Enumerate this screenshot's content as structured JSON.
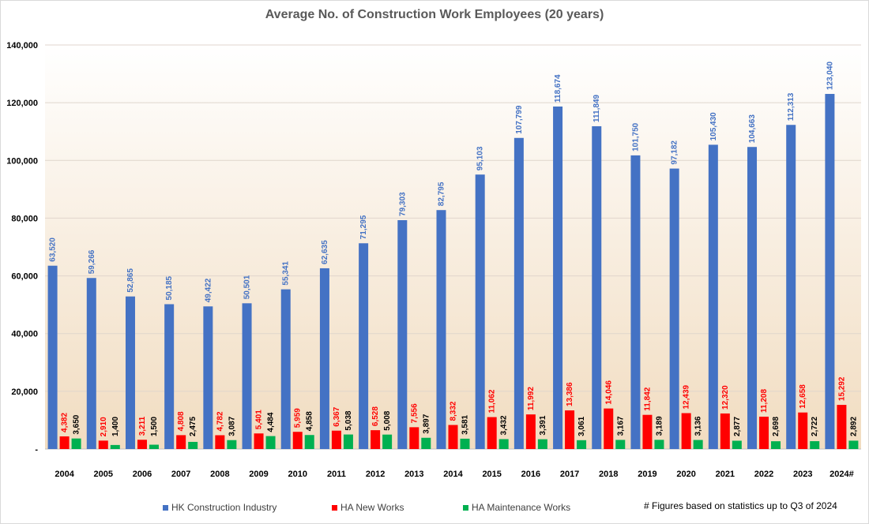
{
  "chart_data": {
    "type": "bar",
    "title": "Average No. of Construction Work Employees (20 years)",
    "xlabel": "",
    "ylabel": "",
    "categories": [
      "2004",
      "2005",
      "2006",
      "2007",
      "2008",
      "2009",
      "2010",
      "2011",
      "2012",
      "2013",
      "2014",
      "2015",
      "2016",
      "2017",
      "2018",
      "2019",
      "2020",
      "2021",
      "2022",
      "2023",
      "2024#"
    ],
    "ylim": [
      0,
      140000
    ],
    "yticks": [
      0,
      20000,
      40000,
      60000,
      80000,
      100000,
      120000,
      140000
    ],
    "ytick_labels": [
      "-",
      "20,000",
      "40,000",
      "60,000",
      "80,000",
      "100,000",
      "120,000",
      "140,000"
    ],
    "grid": true,
    "legend_position": "bottom",
    "series": [
      {
        "name": "HK Construction Industry",
        "color": "#4472c4",
        "label_color": "#4472c4",
        "values": [
          63520,
          59266,
          52865,
          50185,
          49422,
          50501,
          55341,
          62635,
          71295,
          79303,
          82795,
          95103,
          107799,
          118674,
          111849,
          101750,
          97182,
          105430,
          104663,
          112313,
          123040
        ],
        "labels": [
          "63,520",
          "59,266",
          "52,865",
          "50,185",
          "49,422",
          "50,501",
          "55,341",
          "62,635",
          "71,295",
          "79,303",
          "82,795",
          "95,103",
          "107,799",
          "118,674",
          "111,849",
          "101,750",
          "97,182",
          "105,430",
          "104,663",
          "112,313",
          "123,040"
        ]
      },
      {
        "name": "HA New Works",
        "color": "#ff0000",
        "label_color": "#ff0000",
        "values": [
          4382,
          2910,
          3211,
          4808,
          4782,
          5401,
          5959,
          6367,
          6528,
          7556,
          8332,
          11062,
          11992,
          13386,
          14046,
          11842,
          12439,
          12320,
          11208,
          12658,
          15292
        ],
        "labels": [
          "4,382",
          "2,910",
          "3,211",
          "4,808",
          "4,782",
          "5,401",
          "5,959",
          "6,367",
          "6,528",
          "7,556",
          "8,332",
          "11,062",
          "11,992",
          "13,386",
          "14,046",
          "11,842",
          "12,439",
          "12,320",
          "11,208",
          "12,658",
          "15,292"
        ]
      },
      {
        "name": "HA Maintenance Works",
        "color": "#00b050",
        "label_color": "#000000",
        "values": [
          3650,
          1400,
          1500,
          2475,
          3087,
          4484,
          4858,
          5038,
          5008,
          3897,
          3581,
          3432,
          3391,
          3061,
          3167,
          3189,
          3136,
          2877,
          2698,
          2722,
          2892
        ],
        "labels": [
          "3,650",
          "1,400",
          "1,500",
          "2,475",
          "3,087",
          "4,484",
          "4,858",
          "5,038",
          "5,008",
          "3,897",
          "3,581",
          "3,432",
          "3,391",
          "3,061",
          "3,167",
          "3,189",
          "3,136",
          "2,877",
          "2,698",
          "2,722",
          "2,892"
        ]
      }
    ]
  },
  "footnote": "# Figures based on statistics  up to  Q3 of 2024"
}
